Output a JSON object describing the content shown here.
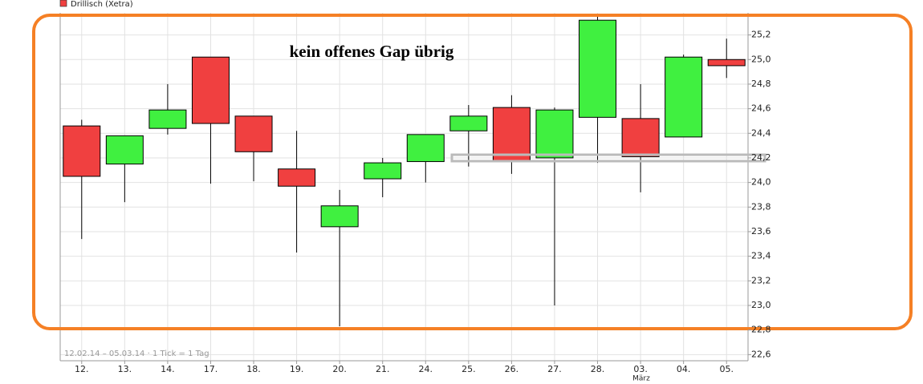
{
  "chart_data": {
    "type": "candlestick",
    "legend": "Drillisch (Xetra)",
    "annotation": "kein offenes Gap übrig",
    "footnote": "12.02.14 – 05.03.14 · 1 Tick = 1 Tag",
    "month_label": "März",
    "up_color": "#40f040",
    "down_color": "#f04040",
    "categories": [
      "12.",
      "13.",
      "14.",
      "17.",
      "18.",
      "19.",
      "20.",
      "21.",
      "24.",
      "25.",
      "26.",
      "27.",
      "28.",
      "03.",
      "04.",
      "05."
    ],
    "open": [
      24.46,
      24.15,
      24.44,
      25.02,
      24.54,
      24.11,
      23.64,
      24.03,
      24.17,
      24.42,
      24.61,
      24.2,
      24.53,
      24.52,
      24.37,
      25.0
    ],
    "high": [
      24.51,
      24.38,
      24.8,
      25.02,
      24.54,
      24.42,
      23.94,
      24.2,
      24.39,
      24.63,
      24.71,
      24.61,
      25.36,
      24.8,
      25.04,
      25.17
    ],
    "low": [
      23.54,
      23.84,
      24.39,
      23.99,
      24.01,
      23.43,
      22.83,
      23.88,
      24.0,
      24.13,
      24.07,
      23.0,
      24.16,
      23.92,
      24.37,
      24.85
    ],
    "close": [
      24.05,
      24.38,
      24.59,
      24.48,
      24.25,
      23.97,
      23.81,
      24.16,
      24.39,
      24.54,
      24.18,
      24.59,
      25.32,
      24.21,
      25.02,
      24.95
    ],
    "ylim": [
      22.55,
      25.38
    ],
    "yticks": [
      {
        "value": 22.6,
        "label": "22,6"
      },
      {
        "value": 22.8,
        "label": "22,8"
      },
      {
        "value": 23.0,
        "label": "23,0"
      },
      {
        "value": 23.2,
        "label": "23,2"
      },
      {
        "value": 23.4,
        "label": "23,4"
      },
      {
        "value": 23.6,
        "label": "23,6"
      },
      {
        "value": 23.8,
        "label": "23,8"
      },
      {
        "value": 24.0,
        "label": "24,0"
      },
      {
        "value": 24.2,
        "label": "24,2"
      },
      {
        "value": 24.4,
        "label": "24,4"
      },
      {
        "value": 24.6,
        "label": "24,6"
      },
      {
        "value": 24.8,
        "label": "24,8"
      },
      {
        "value": 25.0,
        "label": "25,0"
      },
      {
        "value": 25.2,
        "label": "25,2"
      }
    ],
    "grid": true
  }
}
